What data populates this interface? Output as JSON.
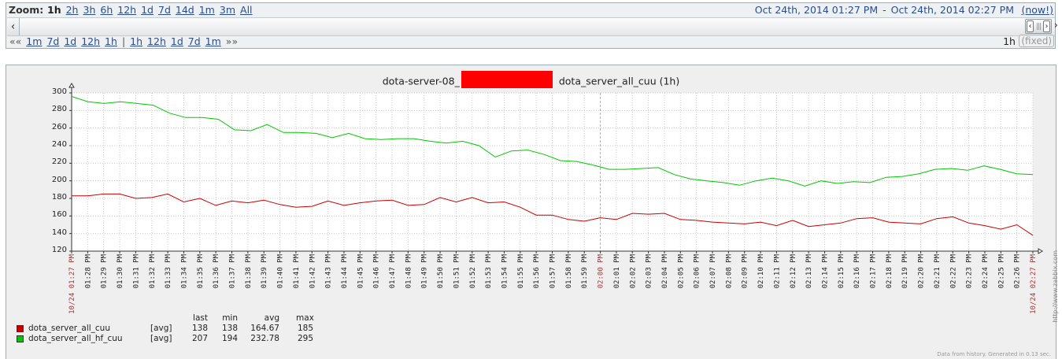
{
  "nav": {
    "zoom_label": "Zoom:",
    "zoom_options": [
      {
        "label": "1h",
        "active": true
      },
      {
        "label": "2h"
      },
      {
        "label": "3h"
      },
      {
        "label": "6h"
      },
      {
        "label": "12h"
      },
      {
        "label": "1d"
      },
      {
        "label": "7d"
      },
      {
        "label": "14d"
      },
      {
        "label": "1m"
      },
      {
        "label": "3m"
      },
      {
        "label": "All"
      }
    ],
    "period_from": "Oct 24th, 2014 01:27 PM",
    "period_sep": "-",
    "period_to": "Oct 24th, 2014 02:27 PM",
    "now_label": "(now!)",
    "back_arrows": "««",
    "forward_arrows": "»»",
    "back_links": [
      "1m",
      "7d",
      "1d",
      "12h",
      "1h"
    ],
    "forward_links": [
      "1h",
      "12h",
      "1d",
      "7d",
      "1m"
    ],
    "period_length": "1h",
    "fixed_label": "(fixed)"
  },
  "chart_data": {
    "type": "line",
    "title_before": "dota-server-08_",
    "title_after": "dota_server_all_cuu (1h)",
    "ylim": [
      120,
      300
    ],
    "yticks": [
      120,
      140,
      160,
      180,
      200,
      220,
      240,
      260,
      280,
      300
    ],
    "x_ticks": [
      "01:28 PM",
      "01:29 PM",
      "01:30 PM",
      "01:31 PM",
      "01:32 PM",
      "01:33 PM",
      "01:34 PM",
      "01:35 PM",
      "01:36 PM",
      "01:37 PM",
      "01:38 PM",
      "01:39 PM",
      "01:40 PM",
      "01:41 PM",
      "01:42 PM",
      "01:43 PM",
      "01:44 PM",
      "01:45 PM",
      "01:46 PM",
      "01:47 PM",
      "01:48 PM",
      "01:49 PM",
      "01:50 PM",
      "01:51 PM",
      "01:52 PM",
      "01:53 PM",
      "01:54 PM",
      "01:55 PM",
      "01:56 PM",
      "01:57 PM",
      "01:58 PM",
      "01:59 PM",
      "02:00 PM",
      "02:01 PM",
      "02:02 PM",
      "02:03 PM",
      "02:04 PM",
      "02:05 PM",
      "02:06 PM",
      "02:07 PM",
      "02:08 PM",
      "02:09 PM",
      "02:10 PM",
      "02:11 PM",
      "02:12 PM",
      "02:13 PM",
      "02:14 PM",
      "02:15 PM",
      "02:16 PM",
      "02:17 PM",
      "02:18 PM",
      "02:19 PM",
      "02:20 PM",
      "02:21 PM",
      "02:22 PM",
      "02:23 PM",
      "02:24 PM",
      "02:25 PM",
      "02:26 PM"
    ],
    "x_start_label": "10/24 01:27 PM",
    "x_end_label": "10/24 02:27 PM",
    "x_mid_label": "02:00 PM",
    "series": [
      {
        "name": "dota_server_all_hf_cuu",
        "color": "#00c800",
        "values": [
          296,
          290,
          288,
          290,
          288,
          286,
          277,
          272,
          272,
          270,
          258,
          257,
          264,
          255,
          255,
          254,
          249,
          254,
          248,
          247,
          248,
          248,
          245,
          243,
          245,
          240,
          227,
          234,
          235,
          230,
          223,
          222,
          218,
          213,
          213,
          214,
          215,
          207,
          202,
          200,
          198,
          195,
          200,
          203,
          200,
          194,
          200,
          197,
          199,
          198,
          204,
          205,
          208,
          213,
          214,
          212,
          217,
          213,
          208,
          207
        ]
      },
      {
        "name": "dota_server_all_cuu",
        "color": "#c80000",
        "values": [
          183,
          183,
          185,
          185,
          180,
          181,
          185,
          176,
          180,
          172,
          177,
          175,
          178,
          173,
          170,
          171,
          177,
          172,
          175,
          177,
          178,
          172,
          173,
          181,
          176,
          181,
          175,
          176,
          170,
          161,
          161,
          156,
          154,
          158,
          156,
          163,
          162,
          163,
          156,
          155,
          153,
          152,
          151,
          153,
          149,
          155,
          148,
          150,
          152,
          157,
          158,
          153,
          152,
          151,
          157,
          159,
          152,
          149,
          145,
          150,
          138
        ]
      }
    ]
  },
  "legend": {
    "headers": [
      "last",
      "min",
      "avg",
      "max"
    ],
    "rows": [
      {
        "name": "dota_server_all_cuu",
        "fn": "[avg]",
        "last": "138",
        "min": "138",
        "avg": "164.67",
        "max": "185",
        "color": "#c80000"
      },
      {
        "name": "dota_server_all_hf_cuu",
        "fn": "[avg]",
        "last": "207",
        "min": "194",
        "avg": "232.78",
        "max": "295",
        "color": "#00c800"
      }
    ]
  },
  "credit": "http://www.zabbix.com",
  "footer": "Data from history. Generated in 0.13 sec."
}
